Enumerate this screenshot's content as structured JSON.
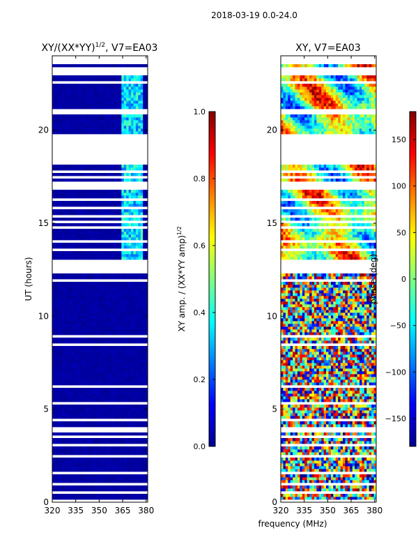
{
  "suptitle": "2018-03-19 0.0-24.0",
  "xlabel": "frequency (MHz)",
  "chart_data": [
    {
      "type": "heatmap",
      "title_main": "XY/(XX*YY)",
      "title_sup": "1/2",
      "title_tail": ", V7=EA03",
      "ylabel": "UT (hours)",
      "xlim": [
        320,
        381
      ],
      "ylim": [
        0,
        24
      ],
      "xticks": [
        320,
        335,
        350,
        365,
        380
      ],
      "yticks": [
        0,
        5,
        10,
        15,
        20
      ],
      "description": "normalized XY amplitude vs frequency and UT; near 0 almost everywhere, raised (0.3-0.5) in band 364-378 MHz between 13 and 23 UT",
      "colorbar": {
        "label_main": "XY amp. / (XX*YY amp)",
        "label_sup": "1/2",
        "range": [
          0.0,
          1.0
        ],
        "ticks": [
          "0.0",
          "0.2",
          "0.4",
          "0.6",
          "0.8",
          "1.0"
        ],
        "tick_values": [
          0.0,
          0.2,
          0.4,
          0.6,
          0.8,
          1.0
        ]
      }
    },
    {
      "type": "heatmap",
      "title": "XY, V7=EA03",
      "ylabel": "",
      "xlim": [
        320,
        381
      ],
      "ylim": [
        0,
        24
      ],
      "xticks": [
        320,
        335,
        350,
        365,
        380
      ],
      "yticks": [
        0,
        5,
        10,
        15,
        20
      ],
      "description": "XY phase vs frequency and UT; noisy random phase below ~12.5 UT, coherent smooth phase structure above",
      "colorbar": {
        "label": "phase (deg)",
        "range": [
          -180,
          180
        ],
        "ticks": [
          "150",
          "100",
          "50",
          "0",
          "−50",
          "−100",
          "−150"
        ],
        "tick_values": [
          150,
          100,
          50,
          0,
          -50,
          -100,
          -150
        ]
      }
    }
  ],
  "gaps_ut": [
    [
      0.05,
      0.12
    ],
    [
      0.45,
      0.55
    ],
    [
      0.95,
      1.05
    ],
    [
      1.45,
      1.58
    ],
    [
      2.4,
      2.5
    ],
    [
      2.95,
      3.1
    ],
    [
      3.45,
      3.6
    ],
    [
      3.75,
      4.1
    ],
    [
      4.42,
      4.5
    ],
    [
      4.62,
      4.72
    ],
    [
      5.3,
      5.38
    ],
    [
      6.2,
      6.28
    ],
    [
      6.72,
      6.8
    ],
    [
      7.15,
      7.22
    ],
    [
      7.62,
      7.68
    ],
    [
      8.05,
      8.15
    ],
    [
      8.45,
      8.52
    ],
    [
      8.85,
      8.95
    ],
    [
      9.55,
      9.62
    ],
    [
      10.0,
      10.1
    ],
    [
      11.2,
      11.3
    ],
    [
      11.5,
      11.62
    ],
    [
      11.85,
      11.95
    ],
    [
      12.1,
      12.2
    ],
    [
      12.3,
      12.4
    ],
    [
      12.45,
      12.55
    ],
    [
      12.6,
      12.7
    ],
    [
      12.75,
      12.85
    ],
    [
      12.95,
      13.05
    ],
    [
      13.55,
      13.62
    ],
    [
      13.95,
      14.05
    ],
    [
      14.35,
      14.42
    ],
    [
      14.72,
      14.8
    ],
    [
      15.05,
      15.12
    ],
    [
      15.3,
      15.4
    ],
    [
      15.58,
      15.65
    ],
    [
      15.8,
      15.9
    ],
    [
      16.2,
      16.3
    ],
    [
      16.75,
      17.2
    ],
    [
      17.45,
      17.55
    ],
    [
      17.75,
      17.82
    ],
    [
      17.95,
      18.05
    ],
    [
      18.15,
      19.85
    ],
    [
      20.85,
      21.15
    ],
    [
      22.15,
      22.25
    ],
    [
      22.52,
      22.62
    ],
    [
      22.95,
      23.45
    ],
    [
      23.55,
      23.65
    ],
    [
      23.72,
      23.82
    ],
    [
      23.88,
      24.0
    ]
  ]
}
